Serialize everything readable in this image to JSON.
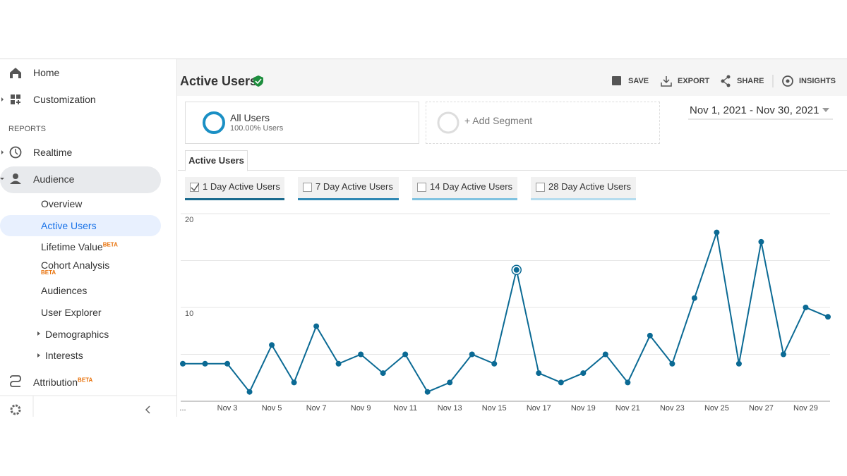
{
  "nav": {
    "top": [
      "Home",
      "Customization"
    ],
    "section": "REPORTS",
    "reports": [
      "Realtime",
      "Audience"
    ],
    "audience": [
      {
        "label": "Overview"
      },
      {
        "label": "Active Users"
      },
      {
        "label": "Lifetime Value",
        "badge": "BETA"
      },
      {
        "label": "Cohort Analysis",
        "badge": "BETA"
      },
      {
        "label": "Audiences"
      },
      {
        "label": "User Explorer"
      },
      {
        "label": "Demographics"
      },
      {
        "label": "Interests"
      }
    ],
    "attribution": {
      "label": "Attribution",
      "badge": "BETA"
    }
  },
  "header": {
    "title": "Active Users",
    "actions": [
      "SAVE",
      "EXPORT",
      "SHARE",
      "INSIGHTS"
    ]
  },
  "segments": {
    "name": "All Users",
    "share": "100.00% Users",
    "add": "+ Add Segment"
  },
  "date_range": "Nov 1, 2021 - Nov 30, 2021",
  "tab": "Active Users",
  "metrics": [
    {
      "label": "1 Day Active Users",
      "checked": true,
      "color": "#1a6a8e"
    },
    {
      "label": "7 Day Active Users",
      "checked": false,
      "color": "#2f88b3"
    },
    {
      "label": "14 Day Active Users",
      "checked": false,
      "color": "#7fc2e0"
    },
    {
      "label": "28 Day Active Users",
      "checked": false,
      "color": "#b5dcee"
    }
  ],
  "chart_data": {
    "type": "line",
    "categories": [
      "...",
      null,
      "Nov 3",
      null,
      "Nov 5",
      null,
      "Nov 7",
      null,
      "Nov 9",
      null,
      "Nov 11",
      null,
      "Nov 13",
      null,
      "Nov 15",
      null,
      "Nov 17",
      null,
      "Nov 19",
      null,
      "Nov 21",
      null,
      "Nov 23",
      null,
      "Nov 25",
      null,
      "Nov 27",
      null,
      "Nov 29",
      null
    ],
    "values": [
      4,
      4,
      4,
      1,
      6,
      2,
      8,
      4,
      5,
      3,
      5,
      1,
      2,
      5,
      4,
      14,
      3,
      2,
      3,
      5,
      2,
      7,
      4,
      11,
      18,
      4,
      17,
      5,
      10,
      9
    ],
    "color": "#0b6a94",
    "ylim": [
      0,
      20
    ],
    "yticks": [
      10,
      20
    ],
    "minor_yticks": [
      5,
      15
    ],
    "grid": true,
    "highlighted_point": 15
  }
}
